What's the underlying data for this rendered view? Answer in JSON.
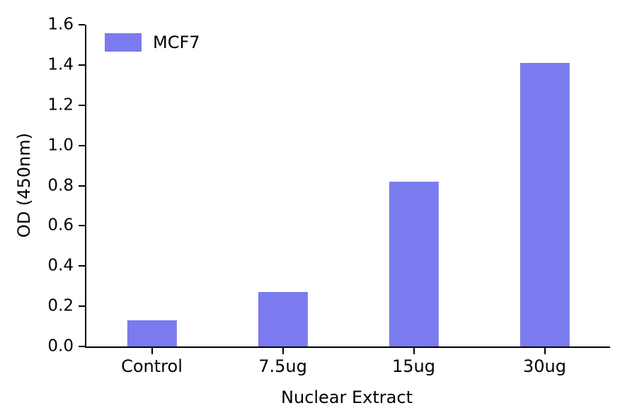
{
  "chart_data": {
    "type": "bar",
    "categories": [
      "Control",
      "7.5ug",
      "15ug",
      "30ug"
    ],
    "values": [
      0.13,
      0.27,
      0.82,
      1.41
    ],
    "series": [
      {
        "name": "MCF7",
        "values": [
          0.13,
          0.27,
          0.82,
          1.41
        ]
      }
    ],
    "title": "",
    "xlabel": "Nuclear Extract",
    "ylabel": "OD (450nm)",
    "ylim": [
      0.0,
      1.6
    ],
    "ytick_step": 0.2,
    "ytick_labels": [
      "0.0",
      "0.2",
      "0.4",
      "0.6",
      "0.8",
      "1.0",
      "1.2",
      "1.4",
      "1.6"
    ],
    "grid": false,
    "bar_color": "#7b7bef",
    "legend": {
      "label": "MCF7",
      "position": "upper-left",
      "frame": false
    }
  }
}
